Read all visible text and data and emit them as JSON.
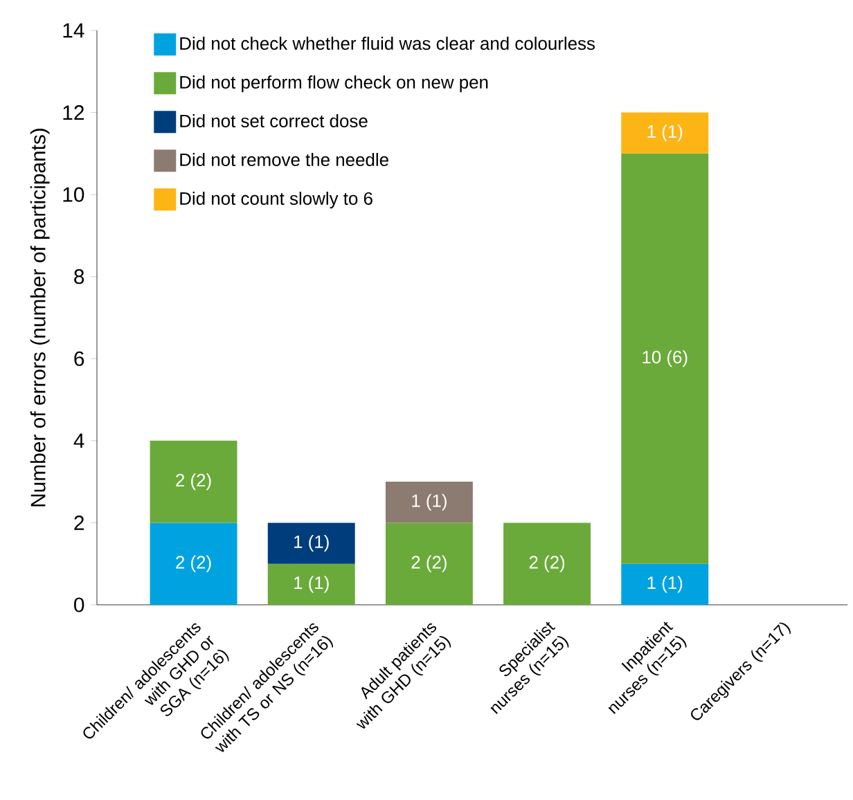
{
  "chart_data": {
    "type": "bar",
    "stacked": true,
    "ylabel": "Number of errors (number of participants)",
    "categories": [
      "Children/ adolescents with GHD or SGA (n=16)",
      "Children/ adolescents with TS or NS (n=16)",
      "Adult patients with GHD (n=15)",
      "Specialist nurses (n=15)",
      "Inpatient nurses (n=15)",
      "Caregivers (n=17)"
    ],
    "series": [
      {
        "name": "Did not check whether fluid was clear and colourless",
        "color": "#00a3e0",
        "values": [
          2,
          null,
          null,
          null,
          1,
          null
        ],
        "value_labels": [
          "2 (2)",
          null,
          null,
          null,
          "1 (1)",
          null
        ]
      },
      {
        "name": "Did not perform flow check on new pen",
        "color": "#6aaa3a",
        "values": [
          2,
          1,
          2,
          2,
          10,
          null
        ],
        "value_labels": [
          "2 (2)",
          "1 (1)",
          "2 (2)",
          "2 (2)",
          "10 (6)",
          null
        ]
      },
      {
        "name": "Did not set correct dose",
        "color": "#003d7c",
        "values": [
          null,
          1,
          null,
          null,
          null,
          null
        ],
        "value_labels": [
          null,
          "1 (1)",
          null,
          null,
          null,
          null
        ]
      },
      {
        "name": "Did not remove the needle",
        "color": "#8c7b70",
        "values": [
          null,
          null,
          1,
          null,
          null,
          null
        ],
        "value_labels": [
          null,
          null,
          "1 (1)",
          null,
          null,
          null
        ]
      },
      {
        "name": "Did not count slowly to 6",
        "color": "#fdb515",
        "values": [
          null,
          null,
          null,
          null,
          1,
          null
        ],
        "value_labels": [
          null,
          null,
          null,
          null,
          "1 (1)",
          null
        ]
      }
    ],
    "ylim": [
      0,
      14
    ],
    "yticks": [
      0,
      2,
      4,
      6,
      8,
      10,
      12,
      14
    ],
    "grid": false,
    "legend": "top left"
  }
}
